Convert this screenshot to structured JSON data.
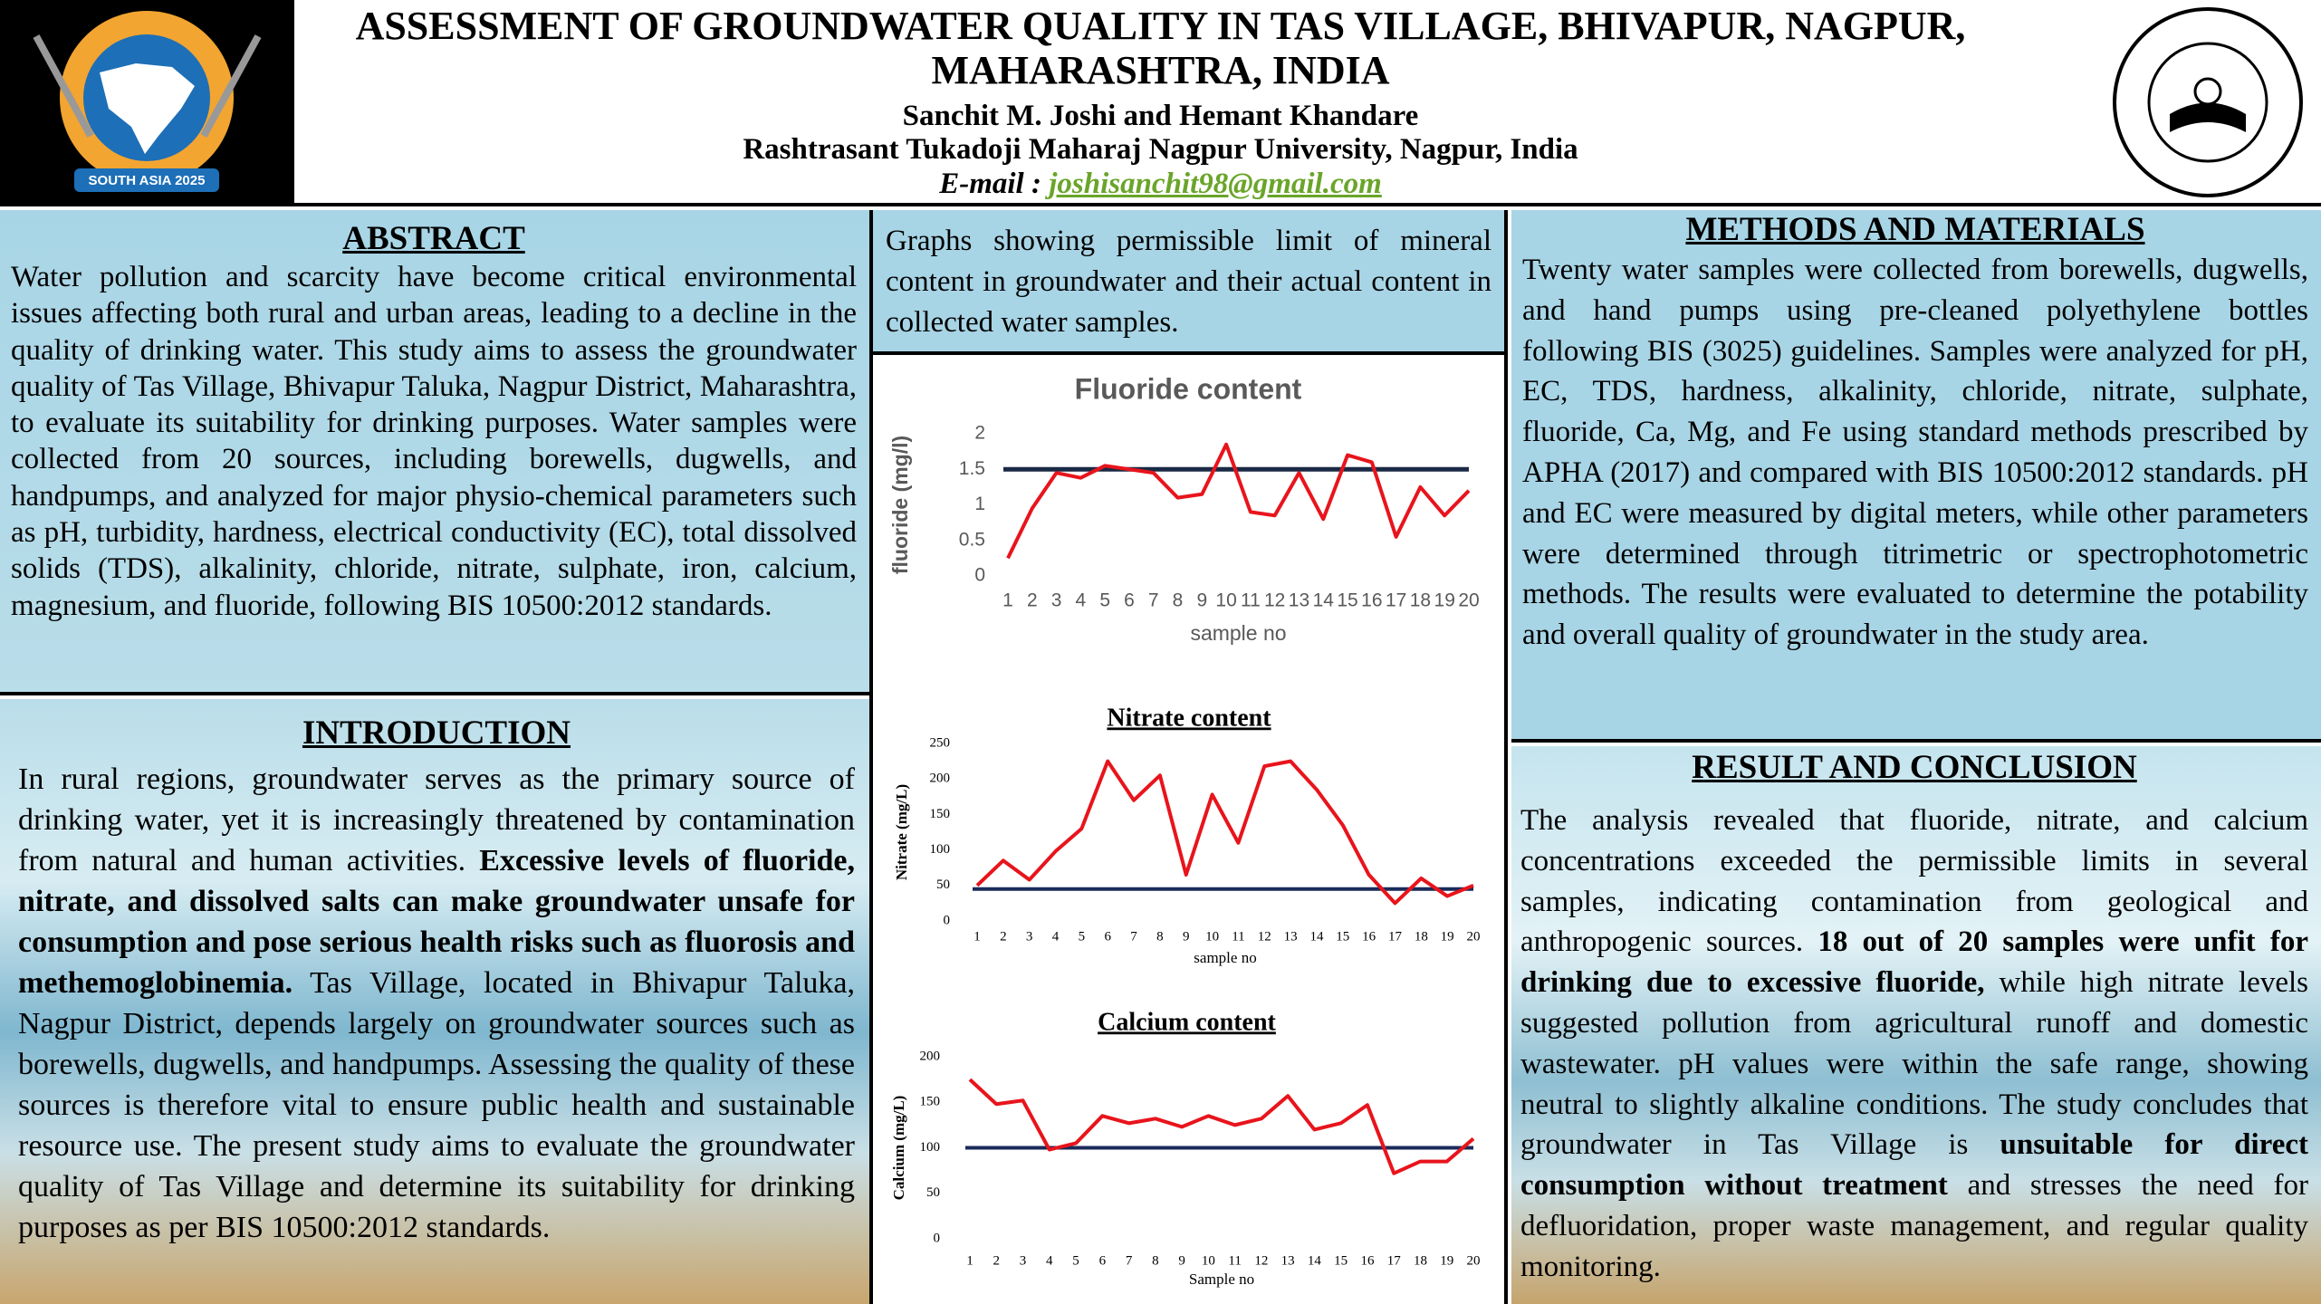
{
  "header": {
    "title_lines": [
      "ASSESSMENT OF GROUNDWATER QUALITY IN TAS VILLAGE, BHIVAPUR, NAGPUR,",
      "MAHARASHTRA, INDIA"
    ],
    "authors": "Sanchit M. Joshi and Hemant Khandare",
    "affiliation": "Rashtrasant Tukadoji Maharaj Nagpur University, Nagpur, India",
    "email_label": "E-mail :",
    "email": "joshisanchit98@gmail.com",
    "logo_text": "SOUTH ASIA 2025"
  },
  "abstract": {
    "heading": "ABSTRACT",
    "text": "Water pollution and scarcity have become critical environmental issues affecting both rural and urban areas, leading to a decline in the quality of drinking water. This study aims to assess the groundwater quality of Tas Village, Bhivapur Taluka, Nagpur District, Maharashtra, to evaluate its suitability for drinking purposes. Water samples were collected from 20 sources, including borewells, dugwells, and handpumps, and analyzed for major physio-chemical parameters such as pH, turbidity, hardness, electrical conductivity (EC), total dissolved solids (TDS), alkalinity, chloride, nitrate, sulphate, iron, calcium, magnesium, and fluoride, following BIS 10500:2012 standards."
  },
  "introduction": {
    "heading": "INTRODUCTION",
    "segments": [
      "In rural regions, groundwater serves as the primary source of drinking water, yet it is increasingly threatened by contamination from natural and human activities. ",
      "Excessive levels of fluoride, nitrate, and dissolved salts can make groundwater unsafe for consumption and pose serious health risks such as fluorosis and methemoglobinemia.",
      " Tas Village, located in Bhivapur Taluka, Nagpur District, depends largely on groundwater sources such as borewells, dugwells, and handpumps. Assessing the quality of these sources is therefore vital to ensure public health and sustainable resource use. The present study aims to evaluate the groundwater quality of Tas Village and determine its suitability for drinking purposes as per BIS 10500:2012 standards."
    ]
  },
  "caption": "Graphs showing permissible limit of mineral content in groundwater and their actual content in collected water samples.",
  "methods": {
    "heading": "METHODS AND MATERIALS",
    "text": "Twenty water samples were collected from borewells, dugwells, and hand pumps using pre-cleaned polyethylene bottles following BIS (3025) guidelines. Samples were analyzed for pH, EC, TDS, hardness, alkalinity, chloride, nitrate, sulphate, fluoride, Ca, Mg, and Fe using standard methods prescribed by APHA (2017) and compared with BIS 10500:2012 standards. pH and EC were measured by digital meters, while other parameters were determined through titrimetric or spectrophotometric methods. The results were evaluated to determine the potability and overall quality of groundwater in the study area."
  },
  "results": {
    "heading": "RESULT AND CONCLUSION",
    "segments": [
      "The analysis revealed that fluoride, nitrate, and calcium concentrations exceeded the permissible limits in several samples, indicating contamination from geological and anthropogenic sources. ",
      "18 out of 20 samples were unfit for drinking due to excessive fluoride,",
      " while high nitrate levels suggested pollution from agricultural runoff and domestic wastewater. pH values were within the safe range, showing neutral to slightly alkaline conditions. The study concludes that groundwater in Tas Village is ",
      "unsuitable for direct consumption without treatment",
      " and stresses the need for defluoridation, proper waste management, and regular quality monitoring."
    ]
  },
  "chart_data": [
    {
      "type": "line",
      "title": "Fluoride content",
      "x_label": "sample no",
      "y_label": "fluoride (mg/l)",
      "categories": [
        1,
        2,
        3,
        4,
        5,
        6,
        7,
        8,
        9,
        10,
        11,
        12,
        13,
        14,
        15,
        16,
        17,
        18,
        19,
        20
      ],
      "values": [
        0.25,
        0.95,
        1.45,
        1.38,
        1.55,
        1.5,
        1.45,
        1.1,
        1.15,
        1.85,
        0.9,
        0.85,
        1.45,
        0.8,
        1.7,
        1.6,
        0.55,
        1.25,
        0.85,
        1.2
      ],
      "color": "#e8141c",
      "limit": 1.5,
      "limit_color": "#1a2a45",
      "ylim": [
        0,
        2
      ],
      "yticks": [
        0,
        0.5,
        1,
        1.5,
        2
      ]
    },
    {
      "type": "line",
      "title": "Nitrate content",
      "x_label": "sample no",
      "y_label": "Nitrate (mg/L)",
      "categories": [
        1,
        2,
        3,
        4,
        5,
        6,
        7,
        8,
        9,
        10,
        11,
        12,
        13,
        14,
        15,
        16,
        17,
        18,
        19,
        20
      ],
      "values": [
        50,
        85,
        58,
        98,
        130,
        225,
        170,
        205,
        65,
        178,
        110,
        218,
        225,
        185,
        135,
        65,
        25,
        60,
        35,
        50
      ],
      "color": "#e8141c",
      "limit": 45,
      "limit_color": "#1a2a5a",
      "ylim": [
        0,
        250
      ],
      "yticks": [
        0,
        50,
        100,
        150,
        200,
        250
      ]
    },
    {
      "type": "line",
      "title": "Calcium content",
      "x_label": "Sample no",
      "y_label": "Calcium  (mg/L)",
      "categories": [
        1,
        2,
        3,
        4,
        5,
        6,
        7,
        8,
        9,
        10,
        11,
        12,
        13,
        14,
        15,
        16,
        17,
        18,
        19,
        20
      ],
      "values": [
        175,
        148,
        152,
        98,
        105,
        135,
        127,
        132,
        123,
        135,
        125,
        132,
        157,
        120,
        127,
        147,
        72,
        85,
        85,
        110
      ],
      "color": "#e8141c",
      "limit": 100,
      "limit_color": "#1a2a5a",
      "ylim": [
        0,
        200
      ],
      "yticks": [
        0,
        50,
        100,
        150,
        200
      ]
    }
  ]
}
